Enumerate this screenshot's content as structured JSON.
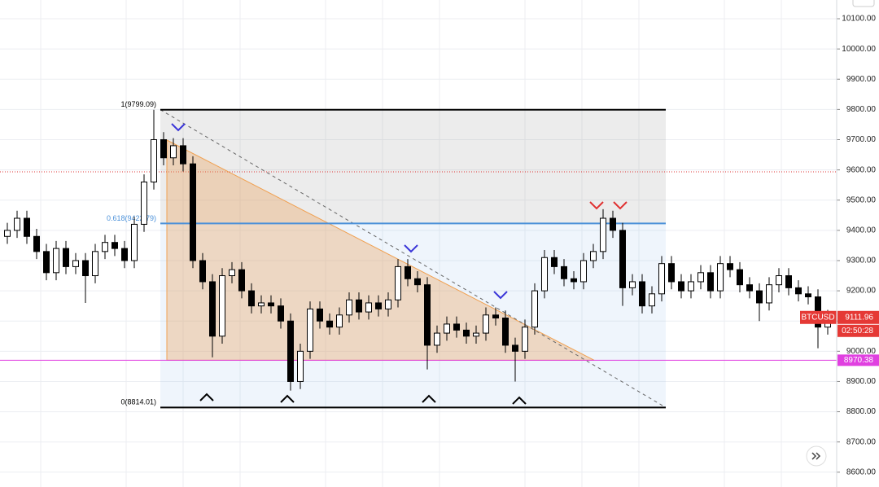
{
  "chart_data": {
    "type": "candlestick",
    "symbol": "BTCUSD",
    "open": [
      9380,
      9400,
      9440,
      9380,
      9330,
      9260,
      9340,
      9280,
      9300,
      9250,
      9330,
      9360,
      9340,
      9300,
      9420,
      9560,
      9700,
      9640,
      9680,
      9620,
      9300,
      9230,
      9050,
      9250,
      9270,
      9200,
      9150,
      9160,
      9150,
      9100,
      8900,
      9000,
      9140,
      9100,
      9080,
      9120,
      9170,
      9130,
      9160,
      9140,
      9170,
      9280,
      9240,
      9220,
      9020,
      9060,
      9090,
      9070,
      9050,
      9060,
      9120,
      9110,
      9020,
      9000,
      9080,
      9200,
      9310,
      9280,
      9240,
      9230,
      9300,
      9330,
      9440,
      9400,
      9210,
      9230,
      9150,
      9190,
      9290,
      9230,
      9200,
      9230,
      9260,
      9200,
      9290,
      9270,
      9220,
      9200,
      9160,
      9220,
      9250,
      9210,
      9190,
      9180,
      9080
    ],
    "high": [
      9425,
      9465,
      9465,
      9405,
      9355,
      9365,
      9365,
      9325,
      9325,
      9355,
      9385,
      9385,
      9365,
      9445,
      9585,
      9799,
      9725,
      9705,
      9705,
      9645,
      9325,
      9255,
      9275,
      9295,
      9295,
      9225,
      9185,
      9185,
      9175,
      9125,
      9025,
      9165,
      9165,
      9125,
      9145,
      9195,
      9195,
      9185,
      9185,
      9195,
      9305,
      9305,
      9265,
      9245,
      9085,
      9115,
      9115,
      9095,
      9085,
      9145,
      9145,
      9135,
      9045,
      9105,
      9225,
      9335,
      9335,
      9305,
      9265,
      9325,
      9355,
      9470,
      9465,
      9425,
      9255,
      9255,
      9215,
      9315,
      9315,
      9255,
      9255,
      9285,
      9285,
      9315,
      9315,
      9295,
      9245,
      9225,
      9245,
      9275,
      9275,
      9235,
      9215,
      9205,
      9137
    ],
    "low": [
      9355,
      9375,
      9355,
      9305,
      9235,
      9235,
      9255,
      9255,
      9160,
      9225,
      9305,
      9315,
      9275,
      9275,
      9395,
      9535,
      9615,
      9615,
      9595,
      9275,
      9205,
      8980,
      9025,
      9225,
      9175,
      9125,
      9125,
      9125,
      9075,
      8870,
      8875,
      8975,
      9075,
      9055,
      9055,
      9095,
      9105,
      9105,
      9115,
      9115,
      9145,
      9215,
      9195,
      8940,
      8995,
      9035,
      9045,
      9025,
      9025,
      9035,
      9085,
      8995,
      8900,
      8975,
      9055,
      9175,
      9255,
      9215,
      9205,
      9205,
      9275,
      9305,
      9375,
      9150,
      9185,
      9125,
      9125,
      9165,
      9205,
      9175,
      9175,
      9205,
      9175,
      9175,
      9245,
      9195,
      9175,
      9100,
      9135,
      9195,
      9185,
      9165,
      9155,
      9010,
      9055
    ],
    "close": [
      9400,
      9440,
      9380,
      9330,
      9260,
      9340,
      9280,
      9300,
      9250,
      9330,
      9360,
      9340,
      9300,
      9420,
      9560,
      9700,
      9640,
      9680,
      9620,
      9300,
      9230,
      9050,
      9250,
      9270,
      9200,
      9150,
      9160,
      9150,
      9100,
      8900,
      9000,
      9140,
      9100,
      9080,
      9120,
      9170,
      9130,
      9160,
      9140,
      9170,
      9280,
      9240,
      9220,
      9020,
      9060,
      9090,
      9070,
      9050,
      9060,
      9120,
      9110,
      9020,
      9000,
      9080,
      9200,
      9310,
      9280,
      9240,
      9230,
      9300,
      9330,
      9440,
      9400,
      9210,
      9230,
      9150,
      9190,
      9290,
      9230,
      9200,
      9230,
      9260,
      9200,
      9290,
      9270,
      9220,
      9200,
      9160,
      9220,
      9250,
      9210,
      9190,
      9180,
      9080,
      9112
    ],
    "ylim": [
      8551,
      10162
    ],
    "yticks": [
      {
        "value": 8600,
        "label": "8600.00"
      },
      {
        "value": 8700,
        "label": "8700.00"
      },
      {
        "value": 8800,
        "label": "8800.00"
      },
      {
        "value": 8900,
        "label": "8900.00"
      },
      {
        "value": 9000,
        "label": "9000.00"
      },
      {
        "value": 9100,
        "label": "9100.00"
      },
      {
        "value": 9200,
        "label": "9200.00"
      },
      {
        "value": 9300,
        "label": "9300.00"
      },
      {
        "value": 9400,
        "label": "9400.00"
      },
      {
        "value": 9500,
        "label": "9500.00"
      },
      {
        "value": 9600,
        "label": "9600.00"
      },
      {
        "value": 9700,
        "label": "9700.00"
      },
      {
        "value": 9800,
        "label": "9800.00"
      },
      {
        "value": 9900,
        "label": "9900.00"
      },
      {
        "value": 10000,
        "label": "10000.00"
      },
      {
        "value": 10100,
        "label": "10100.00"
      }
    ],
    "fib_levels": [
      {
        "value": 9799.09,
        "label": "1(9799.09)",
        "color": "#000000"
      },
      {
        "value": 9422.79,
        "label": "0.618(9422.79)",
        "color": "#4a90d9"
      },
      {
        "value": 8814.01,
        "label": "0(8814.01)",
        "color": "#000000"
      }
    ],
    "last_price": 9111.96,
    "countdown": "02:50:28",
    "support_price": 8970.38,
    "grid": true,
    "up_color": "#ffffff",
    "down_color": "#000000"
  }
}
